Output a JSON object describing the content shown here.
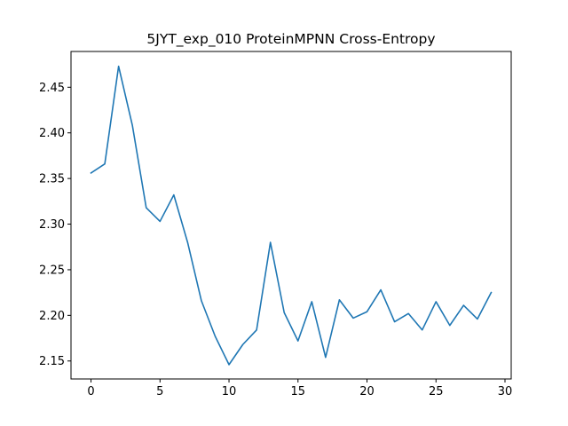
{
  "chart_data": {
    "type": "line",
    "title": "5JYT_exp_010 ProteinMPNN Cross-Entropy",
    "xlabel": "",
    "ylabel": "",
    "xlim": [
      -1.45,
      30.45
    ],
    "ylim": [
      2.1303,
      2.4892
    ],
    "xticks": [
      0,
      5,
      10,
      15,
      20,
      25,
      30
    ],
    "xtick_labels": [
      "0",
      "5",
      "10",
      "15",
      "20",
      "25",
      "30"
    ],
    "yticks": [
      2.15,
      2.2,
      2.25,
      2.3,
      2.35,
      2.4,
      2.45
    ],
    "ytick_labels": [
      "2.15",
      "2.20",
      "2.25",
      "2.30",
      "2.35",
      "2.40",
      "2.45"
    ],
    "grid": false,
    "series": [
      {
        "color": "#1f77b4",
        "x": [
          0,
          1,
          2,
          3,
          4,
          5,
          6,
          7,
          8,
          9,
          10,
          11,
          12,
          13,
          14,
          15,
          16,
          17,
          18,
          19,
          20,
          21,
          22,
          23,
          24,
          25,
          26,
          27,
          28,
          29
        ],
        "y": [
          2.356,
          2.366,
          2.473,
          2.408,
          2.318,
          2.303,
          2.332,
          2.28,
          2.216,
          2.177,
          2.146,
          2.168,
          2.184,
          2.28,
          2.203,
          2.172,
          2.215,
          2.154,
          2.217,
          2.197,
          2.204,
          2.228,
          2.193,
          2.202,
          2.184,
          2.215,
          2.189,
          2.211,
          2.196,
          2.225
        ]
      }
    ]
  }
}
